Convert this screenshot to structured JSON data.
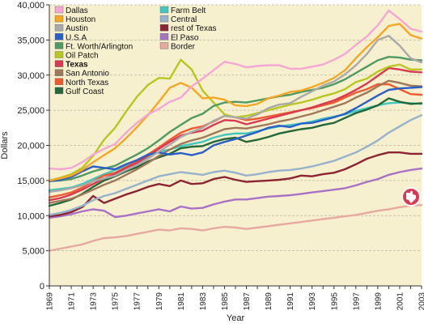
{
  "chart_data": {
    "type": "line",
    "xlabel": "Year",
    "ylabel": "Dollars",
    "ylim": [
      0,
      40000
    ],
    "xlim": [
      1969,
      2003
    ],
    "x": [
      1969,
      1970,
      1971,
      1972,
      1973,
      1974,
      1975,
      1976,
      1977,
      1978,
      1979,
      1980,
      1981,
      1982,
      1983,
      1984,
      1985,
      1986,
      1987,
      1988,
      1989,
      1990,
      1991,
      1992,
      1993,
      1994,
      1995,
      1996,
      1997,
      1998,
      1999,
      2000,
      2001,
      2002,
      2003
    ],
    "x_tick_labels": [
      "1969",
      "1971",
      "1973",
      "1975",
      "1977",
      "1979",
      "1981",
      "1983",
      "1985",
      "1987",
      "1989",
      "1991",
      "1993",
      "1995",
      "1997",
      "1999",
      "2001",
      "2003"
    ],
    "y_tick_labels": [
      "0",
      "5,000",
      "10,000",
      "15,000",
      "20,000",
      "25,000",
      "30,000",
      "35,000",
      "40,000"
    ],
    "y_ticks": [
      0,
      5000,
      10000,
      15000,
      20000,
      25000,
      30000,
      35000,
      40000
    ],
    "grid": true,
    "legend_placement": "top-left",
    "background_color": "#f7f0cf",
    "series": [
      {
        "name": "Dallas",
        "color": "#f4a6d4",
        "bold": false,
        "values": [
          16700,
          16600,
          16800,
          17600,
          18700,
          19500,
          20200,
          21800,
          23200,
          24400,
          25200,
          26200,
          26800,
          28400,
          29500,
          30700,
          31900,
          31600,
          31100,
          31300,
          31400,
          31400,
          30900,
          30900,
          31200,
          31500,
          32200,
          33000,
          34300,
          35500,
          37100,
          39200,
          38000,
          36600,
          36200
        ]
      },
      {
        "name": "Houston",
        "color": "#f5a623",
        "bold": false,
        "values": [
          15000,
          15300,
          15700,
          16500,
          17600,
          18600,
          19600,
          21000,
          22600,
          24300,
          26200,
          28200,
          28900,
          28200,
          26700,
          26800,
          26500,
          25700,
          25600,
          25900,
          26700,
          27100,
          27600,
          27800,
          28300,
          28900,
          29600,
          30700,
          32400,
          34000,
          35400,
          37000,
          37300,
          35700,
          35200
        ]
      },
      {
        "name": "Austin",
        "color": "#a9a9a9",
        "bold": false,
        "values": [
          13400,
          13600,
          13900,
          14300,
          14900,
          15300,
          15700,
          16500,
          17200,
          18100,
          19100,
          20100,
          21200,
          21900,
          22500,
          23500,
          24200,
          24000,
          23800,
          24400,
          25300,
          25800,
          26000,
          26900,
          27700,
          28500,
          29100,
          30100,
          31400,
          33000,
          35000,
          35600,
          34200,
          32400,
          31800
        ]
      },
      {
        "name": "U.S.A",
        "color": "#2a5fc8",
        "bold": false,
        "values": [
          14900,
          15100,
          15500,
          16300,
          17000,
          16800,
          16600,
          17300,
          17900,
          18700,
          19000,
          18700,
          18900,
          18600,
          19000,
          20000,
          20500,
          20900,
          21400,
          21900,
          22500,
          22800,
          22600,
          23100,
          23200,
          23600,
          24000,
          24500,
          25300,
          26200,
          27100,
          27900,
          28100,
          28200,
          28300
        ]
      },
      {
        "name": "Ft. Worth/Arlington",
        "color": "#4f9a63",
        "bold": false,
        "values": [
          14900,
          15000,
          15200,
          15700,
          16300,
          16700,
          17100,
          17900,
          18700,
          19600,
          20700,
          21900,
          22900,
          23900,
          24500,
          25600,
          26100,
          26200,
          26100,
          26400,
          26700,
          27000,
          27200,
          27600,
          27900,
          28200,
          28700,
          29400,
          30300,
          31200,
          32100,
          32600,
          32500,
          32200,
          32100
        ]
      },
      {
        "name": "Oil Patch",
        "color": "#b9c620",
        "bold": false,
        "values": [
          15000,
          15400,
          15900,
          16800,
          18500,
          20800,
          22500,
          24800,
          26900,
          28600,
          29600,
          29500,
          32200,
          30800,
          27800,
          26100,
          24400,
          24000,
          24200,
          24600,
          25000,
          25400,
          25800,
          26100,
          26500,
          27000,
          27400,
          28000,
          29000,
          29500,
          30500,
          31200,
          31500,
          30800,
          30800
        ]
      },
      {
        "name": "Texas",
        "color": "#d83a52",
        "bold": true,
        "values": [
          12200,
          12500,
          13000,
          13700,
          14500,
          15300,
          15900,
          16800,
          17500,
          18500,
          19500,
          20500,
          21400,
          21800,
          22100,
          22900,
          23600,
          23500,
          23000,
          23400,
          23800,
          24200,
          24600,
          25000,
          25400,
          25900,
          26400,
          27100,
          27900,
          28800,
          29900,
          31000,
          30800,
          30500,
          30400
        ]
      },
      {
        "name": "San Antonio",
        "color": "#a0785a",
        "bold": false,
        "values": [
          11800,
          12100,
          12400,
          13000,
          13700,
          14400,
          15000,
          15800,
          16600,
          17500,
          18500,
          19400,
          20200,
          20700,
          21100,
          21700,
          22300,
          22500,
          22400,
          22700,
          23000,
          23400,
          23700,
          24100,
          24500,
          25000,
          25500,
          26000,
          26800,
          27500,
          28400,
          29200,
          28900,
          28500,
          28400
        ]
      },
      {
        "name": "North Texas",
        "color": "#ef5b30",
        "bold": false,
        "values": [
          12600,
          12900,
          13300,
          14000,
          14900,
          15700,
          16100,
          16900,
          17700,
          18700,
          19700,
          20800,
          21800,
          22400,
          22700,
          23400,
          24200,
          24000,
          23600,
          23800,
          24100,
          24400,
          24700,
          25000,
          25300,
          25700,
          26100,
          26800,
          27500,
          28000,
          28700,
          28700,
          28000,
          27300,
          27200
        ]
      },
      {
        "name": "Gulf Coast",
        "color": "#24683a",
        "bold": false,
        "values": [
          11400,
          11800,
          12300,
          13100,
          14100,
          15000,
          15600,
          16300,
          16900,
          17700,
          18300,
          18800,
          19600,
          19800,
          19900,
          20500,
          20900,
          21100,
          20500,
          20800,
          21200,
          21700,
          22000,
          22300,
          22500,
          22900,
          23200,
          23900,
          24600,
          25100,
          25700,
          26700,
          26200,
          25900,
          26000
        ]
      },
      {
        "name": "Farm Belt",
        "color": "#40c8c0",
        "bold": false,
        "values": [
          13600,
          13800,
          14000,
          14500,
          15200,
          15900,
          16500,
          17000,
          17600,
          18300,
          19100,
          19400,
          19900,
          20200,
          20500,
          21100,
          21500,
          21700,
          21700,
          22000,
          22400,
          22700,
          22900,
          23100,
          23400,
          23800,
          24100,
          24400,
          24900,
          25300,
          25700,
          26000,
          26100,
          26000,
          25900
        ]
      },
      {
        "name": "Central",
        "color": "#97b2cc",
        "bold": false,
        "values": [
          10100,
          10400,
          10800,
          11400,
          12200,
          12800,
          13200,
          13800,
          14400,
          15000,
          15600,
          15900,
          16200,
          16000,
          15800,
          16200,
          16400,
          16100,
          15700,
          15900,
          16200,
          16400,
          16500,
          16700,
          17000,
          17400,
          17800,
          18400,
          19000,
          19800,
          20700,
          21800,
          22700,
          23600,
          24300
        ]
      },
      {
        "name": "rest of Texas",
        "color": "#8b2433",
        "bold": false,
        "values": [
          9900,
          10100,
          10500,
          11200,
          12800,
          11800,
          12400,
          13000,
          13500,
          14100,
          14500,
          14200,
          15000,
          14500,
          14600,
          15200,
          15500,
          15100,
          14800,
          14900,
          15000,
          15100,
          15300,
          15700,
          15600,
          15900,
          16100,
          16600,
          17300,
          18100,
          18600,
          19000,
          19000,
          18800,
          18800
        ]
      },
      {
        "name": "El Paso",
        "color": "#a872c4",
        "bold": false,
        "values": [
          9700,
          9900,
          10200,
          10600,
          10900,
          10700,
          9800,
          10000,
          10300,
          10600,
          10900,
          10600,
          11300,
          11000,
          11100,
          11600,
          12000,
          12300,
          12300,
          12500,
          12700,
          12800,
          12900,
          13100,
          13300,
          13500,
          13700,
          13900,
          14300,
          14800,
          15200,
          15800,
          16200,
          16500,
          16700
        ]
      },
      {
        "name": "Border",
        "color": "#e5a9a0",
        "bold": false,
        "values": [
          5000,
          5300,
          5600,
          5900,
          6400,
          6800,
          6900,
          7100,
          7400,
          7700,
          8000,
          7900,
          8200,
          8100,
          7900,
          8200,
          8400,
          8300,
          8100,
          8300,
          8500,
          8700,
          8900,
          9100,
          9300,
          9500,
          9700,
          9900,
          10100,
          10400,
          10700,
          10900,
          11200,
          11400,
          11500
        ]
      }
    ]
  }
}
